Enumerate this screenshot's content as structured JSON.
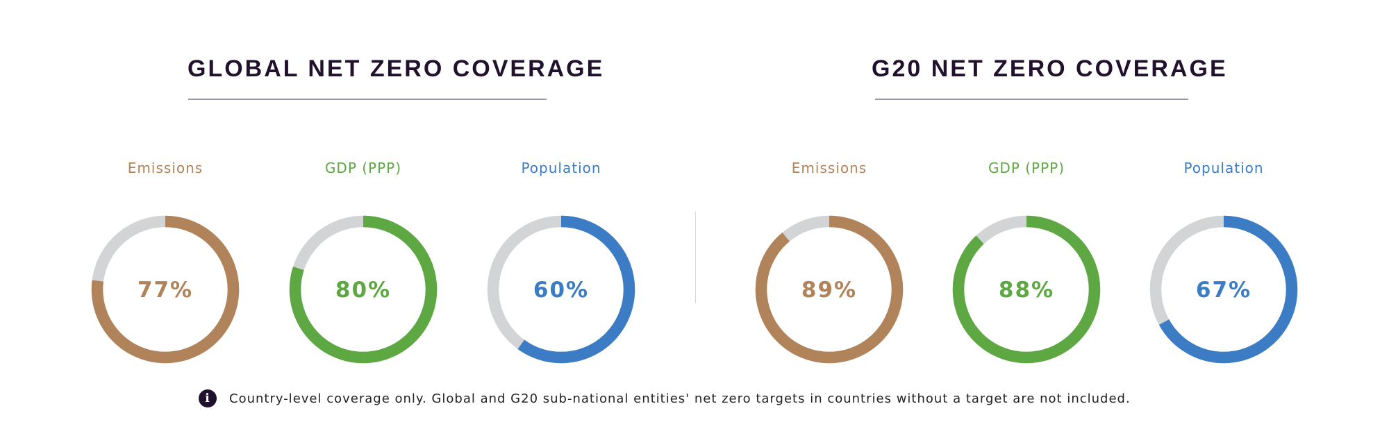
{
  "chart_data": [
    {
      "type": "donut",
      "title": "GLOBAL NET ZERO COVERAGE",
      "series": [
        {
          "name": "Emissions",
          "value": 77,
          "label": "77%",
          "color": "#b0835a"
        },
        {
          "name": "GDP (PPP)",
          "value": 80,
          "label": "80%",
          "color": "#5ea843"
        },
        {
          "name": "Population",
          "value": 60,
          "label": "60%",
          "color": "#3b7cc4"
        }
      ]
    },
    {
      "type": "donut",
      "title": "G20 NET ZERO COVERAGE",
      "series": [
        {
          "name": "Emissions",
          "value": 89,
          "label": "89%",
          "color": "#b0835a"
        },
        {
          "name": "GDP (PPP)",
          "value": 88,
          "label": "88%",
          "color": "#5ea843"
        },
        {
          "name": "Population",
          "value": 67,
          "label": "67%",
          "color": "#3b7cc4"
        }
      ]
    }
  ],
  "remainder_color": "#d3d4d6",
  "note": {
    "icon": "info-icon",
    "text": "Country-level coverage only. Global and G20 sub-national entities' net zero targets in countries without a target are not included."
  }
}
